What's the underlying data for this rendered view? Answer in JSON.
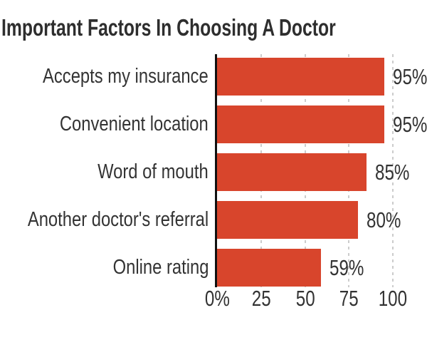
{
  "title": "Important Factors In Choosing A Doctor",
  "chart_data": {
    "type": "bar",
    "orientation": "horizontal",
    "title": "Important Factors In Choosing A Doctor",
    "categories": [
      "Accepts my insurance",
      "Convenient location",
      "Word of mouth",
      "Another doctor's referral",
      "Online rating"
    ],
    "values": [
      95,
      95,
      85,
      80,
      59
    ],
    "value_labels": [
      "95%",
      "95%",
      "85%",
      "80%",
      "59%"
    ],
    "x_ticks": [
      {
        "value": 0,
        "label": "0%"
      },
      {
        "value": 25,
        "label": "25"
      },
      {
        "value": 50,
        "label": "50"
      },
      {
        "value": 75,
        "label": "75"
      },
      {
        "value": 100,
        "label": "100"
      }
    ],
    "xlim": [
      0,
      100
    ],
    "ylabel": "",
    "xlabel": "",
    "legend": "none",
    "grid": "dashed vertical gridlines at 25, 50, 75, 100 behind bars",
    "colors": {
      "bar": "#d8452c",
      "axis": "#111111",
      "grid": "#cccccc",
      "text": "#333333"
    }
  }
}
